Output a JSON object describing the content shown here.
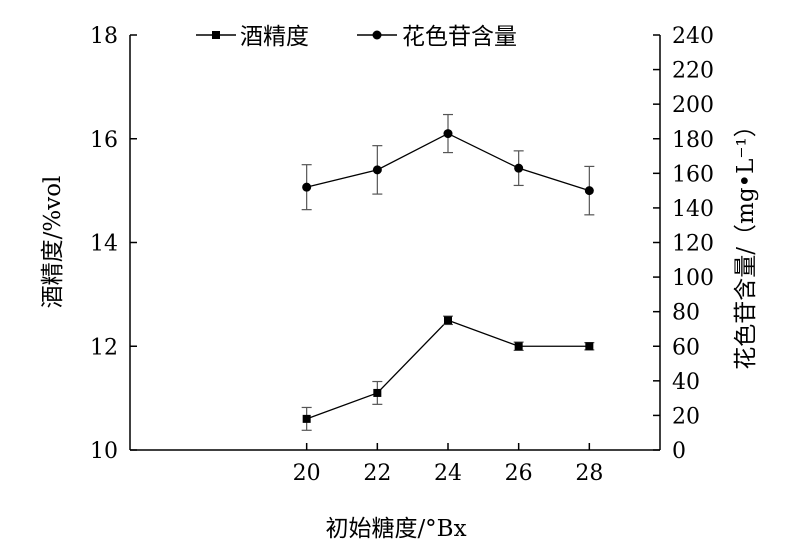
{
  "chart_data": {
    "type": "line",
    "x": [
      20,
      22,
      24,
      26,
      28
    ],
    "xlim": [
      15,
      30
    ],
    "xlabel": "初始糖度/°Bx",
    "ylabel_left": "酒精度/%vol",
    "ylim_left": [
      10,
      18
    ],
    "yticks_left": [
      10,
      12,
      14,
      16,
      18
    ],
    "ylabel_right": "花色苷含量/（mg•L⁻¹）",
    "ylim_right": [
      0,
      240
    ],
    "yticks_right": [
      0,
      20,
      40,
      60,
      80,
      100,
      120,
      140,
      160,
      180,
      200,
      220,
      240
    ],
    "xticks": [
      20,
      22,
      24,
      26,
      28
    ],
    "legend_position": "top",
    "grid": false,
    "series": [
      {
        "name": "酒精度",
        "axis": "left",
        "marker": "square",
        "values": [
          10.6,
          11.1,
          12.5,
          12.0,
          12.0
        ],
        "errors": [
          0.22,
          0.22,
          0.08,
          0.08,
          0.07
        ]
      },
      {
        "name": "花色苷含量",
        "axis": "right",
        "marker": "circle",
        "values": [
          152,
          162,
          183,
          163,
          150
        ],
        "errors": [
          13,
          14,
          11,
          10,
          14
        ]
      }
    ]
  }
}
